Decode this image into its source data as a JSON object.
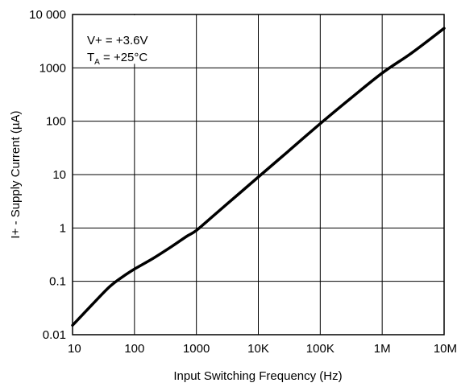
{
  "chart_data": {
    "type": "line",
    "title": "",
    "xlabel": "Input Switching Frequency (Hz)",
    "ylabel": "I+ - Supply Current (µA)",
    "x_scale": "log",
    "y_scale": "log",
    "xlim": [
      10,
      10000000
    ],
    "ylim": [
      0.01,
      10000
    ],
    "grid": true,
    "x_ticks": [
      {
        "value": 10,
        "label": "10"
      },
      {
        "value": 100,
        "label": "100"
      },
      {
        "value": 1000,
        "label": "1000"
      },
      {
        "value": 10000,
        "label": "10K"
      },
      {
        "value": 100000,
        "label": "100K"
      },
      {
        "value": 1000000,
        "label": "1M"
      },
      {
        "value": 10000000,
        "label": "10M"
      }
    ],
    "y_ticks": [
      {
        "value": 0.01,
        "label": "0.01"
      },
      {
        "value": 0.1,
        "label": "0.1"
      },
      {
        "value": 1,
        "label": "1"
      },
      {
        "value": 10,
        "label": "10"
      },
      {
        "value": 100,
        "label": "100"
      },
      {
        "value": 1000,
        "label": "1000"
      },
      {
        "value": 10000,
        "label": "10 000"
      }
    ],
    "annotation": {
      "line1": "V+ = +3.6V",
      "line2_main": "T",
      "line2_sub": "A",
      "line2_rest": " = +25°C"
    },
    "series": [
      {
        "color": "#000000",
        "x": [
          10,
          20,
          40,
          70,
          100,
          200,
          400,
          700,
          1000,
          2000,
          5000,
          10000,
          30000,
          100000,
          300000,
          1000000,
          3000000,
          10000000
        ],
        "y": [
          0.015,
          0.035,
          0.08,
          0.13,
          0.17,
          0.27,
          0.45,
          0.7,
          0.9,
          1.8,
          4.5,
          9,
          27,
          90,
          260,
          800,
          1900,
          5500
        ]
      }
    ]
  }
}
